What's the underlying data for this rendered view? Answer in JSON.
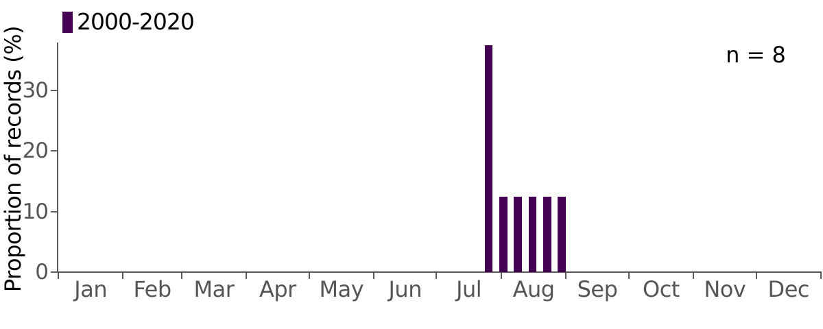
{
  "chart_data": {
    "type": "bar",
    "title": "",
    "xlabel": "",
    "ylabel": "Proportion of records (%)",
    "annotation": "n = 8",
    "n": 8,
    "grid": false,
    "background_color": "#ffffff",
    "axis_color": "#595959",
    "tick_label_color": "#555555",
    "legend": [
      {
        "label": "2000-2020",
        "color": "#440154"
      }
    ],
    "legend_position": "top-left",
    "x_axis": {
      "unit": "day_of_year",
      "range_days": [
        0,
        365
      ],
      "month_labels": [
        "Jan",
        "Feb",
        "Mar",
        "Apr",
        "May",
        "Jun",
        "Jul",
        "Aug",
        "Sep",
        "Oct",
        "Nov",
        "Dec"
      ],
      "month_boundary_days": [
        0,
        31,
        59,
        90,
        120,
        151,
        181,
        212,
        243,
        273,
        304,
        334,
        365
      ]
    },
    "y_axis": {
      "ticks": [
        0,
        10,
        20,
        30
      ],
      "lim": [
        0,
        38
      ]
    },
    "bars": {
      "color": "#440154",
      "bin_width_days": 7,
      "bar_draw_width_days": 3.84,
      "points": [
        {
          "day_of_year": 206,
          "pct": 37.5
        },
        {
          "day_of_year": 213,
          "pct": 12.5
        },
        {
          "day_of_year": 220,
          "pct": 12.5
        },
        {
          "day_of_year": 227,
          "pct": 12.5
        },
        {
          "day_of_year": 234,
          "pct": 12.5
        },
        {
          "day_of_year": 241,
          "pct": 12.5
        }
      ]
    }
  }
}
